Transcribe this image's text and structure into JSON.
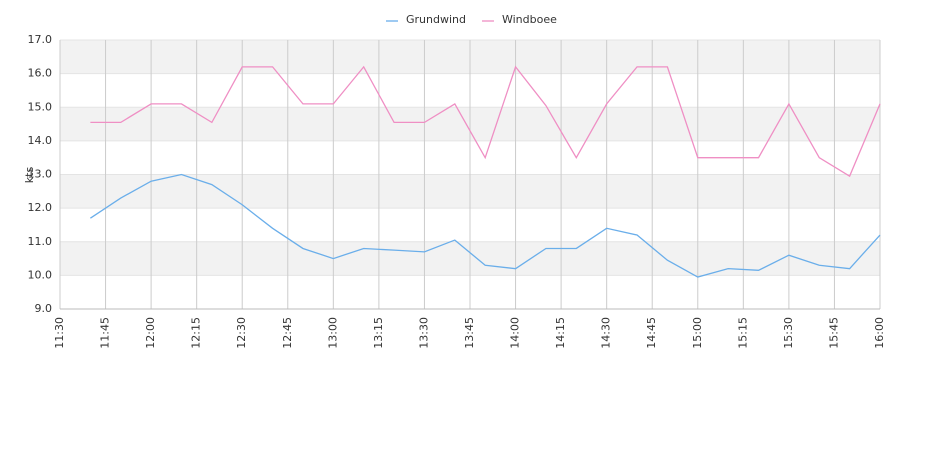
{
  "chart_data": {
    "type": "line",
    "y_label": "kts",
    "x": [
      "11:40",
      "11:50",
      "12:00",
      "12:10",
      "12:20",
      "12:30",
      "12:40",
      "12:50",
      "13:00",
      "13:10",
      "13:20",
      "13:30",
      "13:40",
      "13:50",
      "14:00",
      "14:10",
      "14:20",
      "14:30",
      "14:40",
      "14:50",
      "15:00",
      "15:10",
      "15:20",
      "15:30",
      "15:40",
      "15:50",
      "16:00"
    ],
    "series": [
      {
        "name": "Grundwind",
        "color": "#6aaeea",
        "values": [
          11.7,
          12.3,
          12.8,
          13.0,
          12.7,
          12.1,
          11.4,
          10.8,
          10.5,
          10.8,
          10.75,
          10.7,
          11.05,
          10.3,
          10.2,
          10.8,
          10.8,
          11.4,
          11.2,
          10.45,
          9.95,
          10.2,
          10.15,
          10.6,
          10.3,
          10.2,
          11.2
        ]
      },
      {
        "name": "Windboee",
        "color": "#ef8fc4",
        "values": [
          14.55,
          14.55,
          15.1,
          15.1,
          14.55,
          16.2,
          16.2,
          15.1,
          15.1,
          16.2,
          14.55,
          14.55,
          15.1,
          13.5,
          16.2,
          15.05,
          13.5,
          15.1,
          16.2,
          16.2,
          13.5,
          13.5,
          13.5,
          15.1,
          13.5,
          12.95,
          15.1
        ]
      }
    ],
    "xlim": [
      "11:30",
      "16:00"
    ],
    "xticks": [
      "11:30",
      "11:45",
      "12:00",
      "12:15",
      "12:30",
      "12:45",
      "13:00",
      "13:15",
      "13:30",
      "13:45",
      "14:00",
      "14:15",
      "14:30",
      "14:45",
      "15:00",
      "15:15",
      "15:30",
      "15:45",
      "16:00"
    ],
    "ylim": [
      9,
      17
    ],
    "yticks": [
      {
        "value": 9,
        "label": "9.0"
      },
      {
        "value": 10,
        "label": "10.0"
      },
      {
        "value": 11,
        "label": "11.0"
      },
      {
        "value": 12,
        "label": "12.0"
      },
      {
        "value": 13,
        "label": "13.0"
      },
      {
        "value": 14,
        "label": "14.0"
      },
      {
        "value": 15,
        "label": "15.0"
      },
      {
        "value": 16,
        "label": "16.0"
      },
      {
        "value": 17,
        "label": "17.0"
      }
    ],
    "grid": true,
    "legend": "top"
  }
}
